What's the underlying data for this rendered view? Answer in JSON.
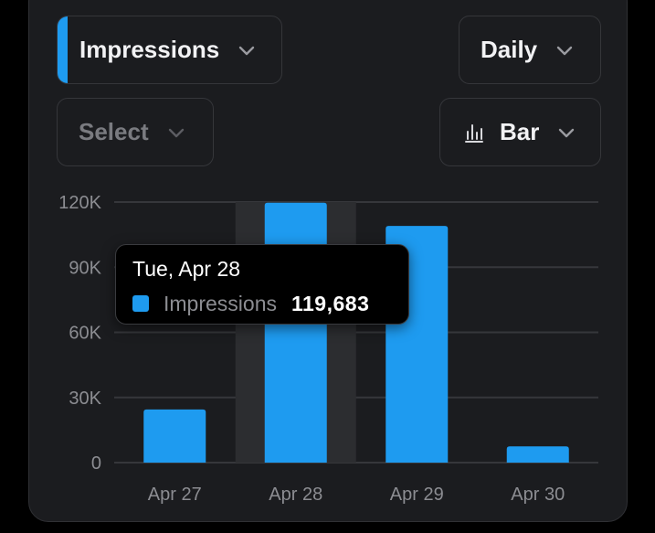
{
  "controls": {
    "metric": {
      "label": "Impressions",
      "accent": "#1e9bf0"
    },
    "interval": {
      "label": "Daily"
    },
    "compare": {
      "placeholder": "Select"
    },
    "chart_type": {
      "label": "Bar",
      "icon": "bar-chart-icon"
    }
  },
  "colors": {
    "bar": "#1e9bf0",
    "grid": "#36373b",
    "highlight": "#2c2d30",
    "text_muted": "#8c8d92"
  },
  "tooltip": {
    "date": "Tue, Apr 28",
    "series": "Impressions",
    "value": "119,683"
  },
  "chart_data": {
    "type": "bar",
    "categories": [
      "Apr 27",
      "Apr 28",
      "Apr 29",
      "Apr 30"
    ],
    "series": [
      {
        "name": "Impressions",
        "values": [
          24500,
          119683,
          109000,
          7500
        ]
      }
    ],
    "yticks": [
      0,
      30000,
      60000,
      90000,
      120000
    ],
    "ytick_labels": [
      "0",
      "30K",
      "60K",
      "90K",
      "120K"
    ],
    "ylim": [
      0,
      120000
    ],
    "highlighted_category": "Apr 28",
    "title": "",
    "xlabel": "",
    "ylabel": ""
  }
}
